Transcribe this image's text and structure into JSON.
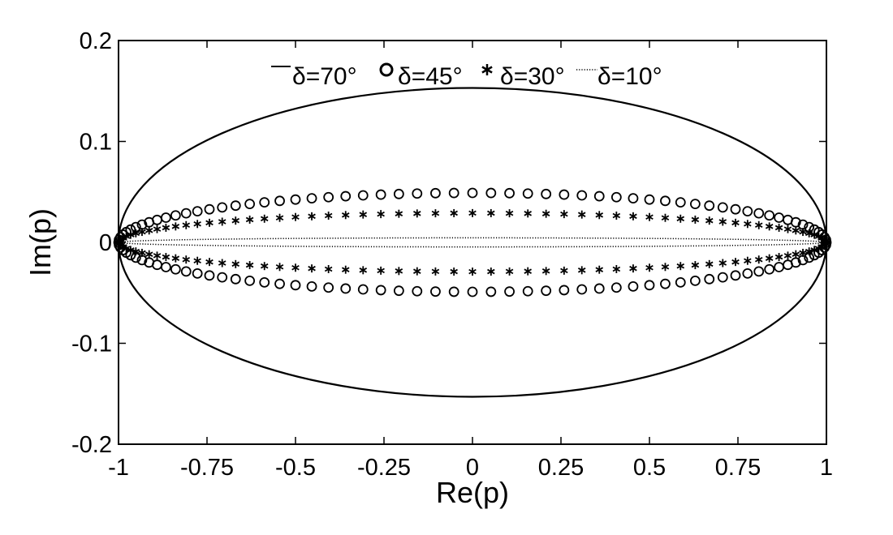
{
  "chart_data": {
    "type": "scatter",
    "title": "",
    "xlabel": "Re(p)",
    "ylabel": "Im(p)",
    "xlim": [
      -1,
      1
    ],
    "ylim": [
      -0.2,
      0.2
    ],
    "xticks": [
      -1,
      -0.75,
      -0.5,
      -0.25,
      0,
      0.25,
      0.5,
      0.75,
      1
    ],
    "xtick_labels": [
      "-1",
      "-0.75",
      "-0.5",
      "-0.25",
      "0",
      "0.25",
      "0.5",
      "0.75",
      "1"
    ],
    "yticks": [
      -0.2,
      -0.1,
      0,
      0.1,
      0.2
    ],
    "ytick_labels": [
      "-0.2",
      "-0.1",
      "0",
      "0.1",
      "0.2"
    ],
    "grid": false,
    "legend_position": "top-center",
    "series": [
      {
        "name": "δ=70°",
        "marker": "line",
        "semi_axis_im": 0.153
      },
      {
        "name": "δ=45°",
        "marker": "circle",
        "semi_axis_im": 0.049
      },
      {
        "name": "δ=30°",
        "marker": "asterisk",
        "semi_axis_im": 0.029
      },
      {
        "name": "δ=10°",
        "marker": "dotted",
        "semi_axis_im": 0.0045
      }
    ]
  }
}
